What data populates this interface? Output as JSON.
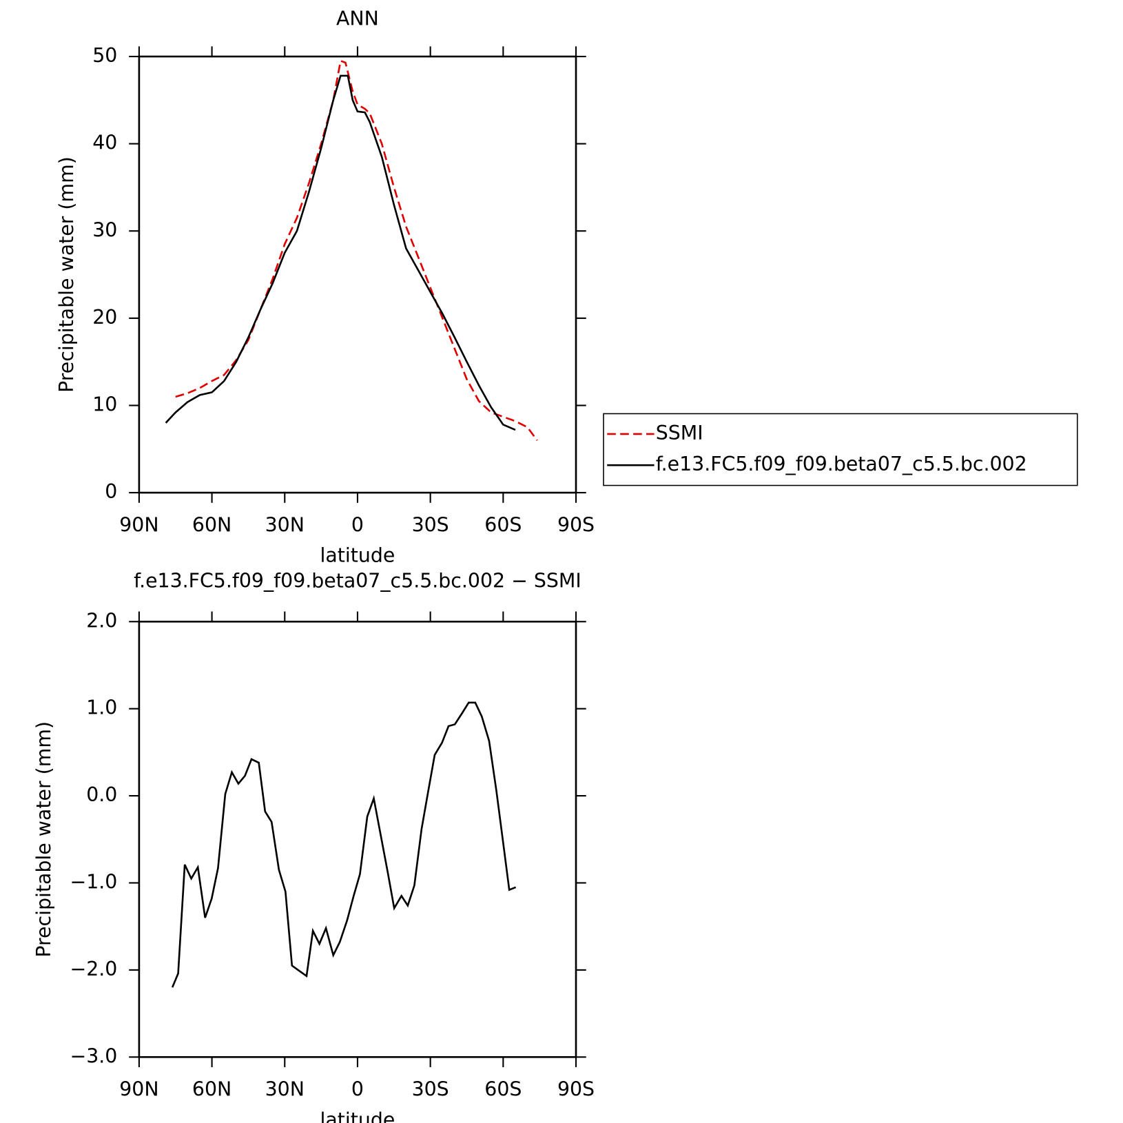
{
  "chart_data": [
    {
      "type": "line",
      "title": "ANN",
      "xlabel": "latitude",
      "ylabel": "Precipitable water (mm)",
      "xlim": [
        90,
        -90
      ],
      "xticks": [
        {
          "value": 90,
          "label": "90N"
        },
        {
          "value": 60,
          "label": "60N"
        },
        {
          "value": 30,
          "label": "30N"
        },
        0,
        {
          "value": -30,
          "label": "30S"
        },
        {
          "value": -60,
          "label": "60S"
        },
        {
          "value": -90,
          "label": "90S"
        }
      ],
      "ylim": [
        0,
        50
      ],
      "yticks": [
        0,
        10,
        20,
        30,
        40,
        50
      ],
      "legend": "right",
      "series": [
        {
          "name": "SSMI",
          "color": "#e00000",
          "line_style": "dashed",
          "x": [
            75,
            70,
            65,
            60,
            55,
            50,
            45,
            40,
            35,
            30,
            25,
            20,
            15,
            10,
            7,
            5,
            2,
            0,
            -3,
            -5,
            -10,
            -15,
            -20,
            -25,
            -30,
            -35,
            -40,
            -45,
            -50,
            -55,
            -60,
            -65,
            -70,
            -74
          ],
          "values": [
            11.0,
            11.4,
            12.0,
            12.8,
            13.5,
            15.2,
            17.5,
            21.0,
            24.5,
            28.5,
            31.5,
            35.5,
            40.0,
            45.0,
            49.5,
            49.3,
            46.0,
            44.5,
            44.0,
            43.5,
            40.0,
            35.0,
            30.5,
            27.0,
            23.5,
            20.0,
            16.5,
            13.0,
            10.5,
            9.2,
            8.7,
            8.2,
            7.5,
            6.0
          ]
        },
        {
          "name": "f.e13.FC5.f09_f09.beta07_c5.5.bc.002",
          "color": "#000000",
          "line_style": "solid",
          "x": [
            79,
            75,
            70,
            65,
            60,
            55,
            50,
            45,
            40,
            35,
            30,
            25,
            20,
            15,
            10,
            7,
            4,
            2,
            0,
            -3,
            -5,
            -10,
            -15,
            -20,
            -25,
            -30,
            -35,
            -40,
            -45,
            -50,
            -55,
            -60,
            -65
          ],
          "values": [
            8.0,
            9.2,
            10.4,
            11.2,
            11.5,
            12.8,
            15.0,
            17.8,
            21.0,
            24.0,
            27.5,
            30.0,
            34.5,
            39.5,
            45.0,
            47.8,
            47.8,
            45.0,
            43.7,
            43.6,
            42.5,
            38.5,
            33.0,
            28.0,
            25.5,
            23.0,
            20.5,
            17.8,
            15.0,
            12.3,
            9.8,
            7.8,
            7.2
          ]
        }
      ]
    },
    {
      "type": "line",
      "title": "f.e13.FC5.f09_f09.beta07_c5.5.bc.002 − SSMI",
      "xlabel": "latitude",
      "ylabel": "Precipitable water (mm)",
      "xlim": [
        90,
        -90
      ],
      "xticks": [
        {
          "value": 90,
          "label": "90N"
        },
        {
          "value": 60,
          "label": "60N"
        },
        {
          "value": 30,
          "label": "30N"
        },
        0,
        {
          "value": -30,
          "label": "30S"
        },
        {
          "value": -60,
          "label": "60S"
        },
        {
          "value": -90,
          "label": "90S"
        }
      ],
      "ylim": [
        -3,
        2
      ],
      "yticks": [
        {
          "value": -3,
          "label": "−3.0"
        },
        {
          "value": -2,
          "label": "−2.0"
        },
        {
          "value": -1,
          "label": "−1.0"
        },
        {
          "value": 0,
          "label": "0.0"
        },
        {
          "value": 1,
          "label": "1.0"
        },
        {
          "value": 2,
          "label": "2.0"
        }
      ],
      "series": [
        {
          "color": "#000000",
          "line_style": "solid",
          "x": [
            76.3,
            73.9,
            71.2,
            68.5,
            65.8,
            62.8,
            60.1,
            57.5,
            54.5,
            51.8,
            49.1,
            46.4,
            43.7,
            40.7,
            38.1,
            35.4,
            32.4,
            29.7,
            27.0,
            24.0,
            21.0,
            18.4,
            15.7,
            13.0,
            10.0,
            7.3,
            4.3,
            1.6,
            -1.0,
            -4.0,
            -6.7,
            -9.4,
            -12.4,
            -15.1,
            -18.1,
            -20.7,
            -23.4,
            -26.4,
            -29.1,
            -31.8,
            -34.8,
            -37.5,
            -40.1,
            -43.1,
            -45.8,
            -48.5,
            -51.2,
            -54.2,
            -57.2,
            -59.9,
            -62.5,
            -65.2
          ],
          "values": [
            -2.2,
            -2.04,
            -0.79,
            -0.95,
            -0.82,
            -1.4,
            -1.18,
            -0.83,
            0.02,
            0.27,
            0.14,
            0.23,
            0.42,
            0.38,
            -0.18,
            -0.3,
            -0.85,
            -1.1,
            -1.95,
            -2.01,
            -2.07,
            -1.55,
            -1.7,
            -1.52,
            -1.83,
            -1.68,
            -1.43,
            -1.15,
            -0.9,
            -0.24,
            -0.03,
            -0.43,
            -0.87,
            -1.29,
            -1.15,
            -1.26,
            -1.03,
            -0.38,
            0.05,
            0.47,
            0.61,
            0.8,
            0.82,
            0.95,
            1.07,
            1.07,
            0.91,
            0.63,
            0.06,
            -0.52,
            -1.08,
            -1.05
          ]
        }
      ]
    }
  ]
}
